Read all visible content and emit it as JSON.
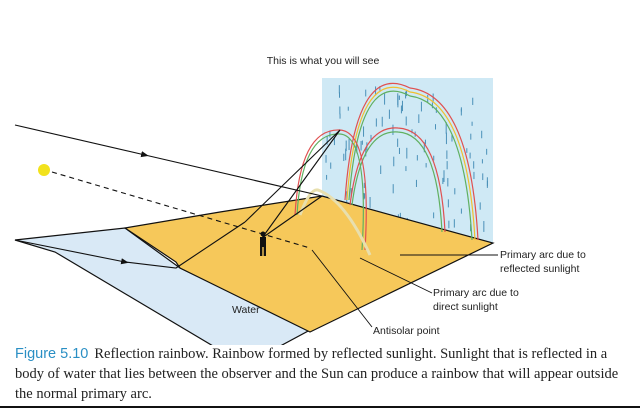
{
  "figure": {
    "heading": "This is what you will see",
    "labels": {
      "reflected_arc_1": "Primary arc due to",
      "reflected_arc_2": "reflected sunlight",
      "direct_arc_1": "Primary arc due to",
      "direct_arc_2": "direct sunlight",
      "antisolar": "Antisolar point",
      "water": "Water"
    },
    "colors": {
      "ground": "#f6c85a",
      "water": "#d9e9f6",
      "rain_panel": "#cfe9f5",
      "sun": "#f2e21c",
      "caption_number": "#2a8fc4"
    }
  },
  "caption": {
    "number": "Figure 5.10",
    "text": "Reflection rainbow. Rainbow formed by reflected sunlight. Sunlight that is reflected in a body of water that lies between the observer and the Sun can produce a rainbow that will appear outside the normal primary arc."
  }
}
